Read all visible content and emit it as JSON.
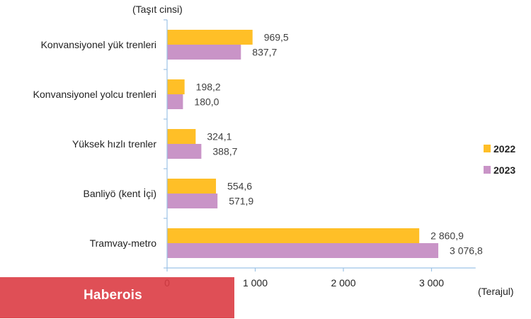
{
  "chart_data": {
    "type": "bar",
    "orientation": "horizontal",
    "title": "",
    "ylabel": "(Taşıt cinsi)",
    "xlabel": "(Terajul)",
    "categories": [
      "Konvansiyonel yük trenleri",
      "Konvansiyonel yolcu trenleri",
      "Yüksek hızlı trenler",
      "Banliyö (kent İçi)",
      "Tramvay-metro"
    ],
    "series": [
      {
        "name": "2022",
        "color": "#FFBF27",
        "values": [
          969.5,
          198.2,
          324.1,
          554.6,
          2860.9
        ],
        "labels": [
          "969,5",
          "198,2",
          "324,1",
          "554,6",
          "2 860,9"
        ]
      },
      {
        "name": "2023",
        "color": "#C994C7",
        "values": [
          837.7,
          180.0,
          388.7,
          571.9,
          3076.8
        ],
        "labels": [
          "837,7",
          "180,0",
          "388,7",
          "571,9",
          "3 076,8"
        ]
      }
    ],
    "xlim": [
      0,
      3500
    ],
    "xticks": [
      0,
      1000,
      2000,
      3000
    ],
    "xtick_labels": [
      "0",
      "1 000",
      "2 000",
      "3 000"
    ],
    "grid": false,
    "legend_position": "right"
  },
  "watermark": {
    "text": "Haberois",
    "color": "#DC3C44"
  }
}
